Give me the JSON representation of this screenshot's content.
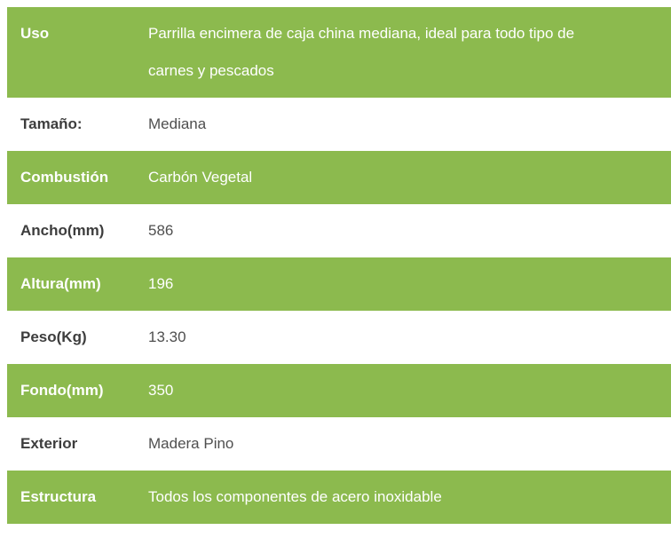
{
  "colors": {
    "row_highlight_green": "#8cba4e",
    "highlight_text": "#ffffff",
    "label_text": "#3d3d3d",
    "value_text": "#4f4f4f",
    "background": "#ffffff"
  },
  "spec_table": {
    "rows": [
      {
        "label": "Uso",
        "value": "Parrilla encimera de caja china mediana, ideal para todo tipo de carnes y pescados",
        "highlight": true
      },
      {
        "label": "Tamaño:",
        "value": "Mediana",
        "highlight": false
      },
      {
        "label": "Combustión",
        "value": "Carbón Vegetal",
        "highlight": true
      },
      {
        "label": "Ancho(mm)",
        "value": "586",
        "highlight": false
      },
      {
        "label": "Altura(mm)",
        "value": "196",
        "highlight": true
      },
      {
        "label": "Peso(Kg)",
        "value": "13.30",
        "highlight": false
      },
      {
        "label": "Fondo(mm)",
        "value": "350",
        "highlight": true
      },
      {
        "label": "Exterior",
        "value": "Madera Pino",
        "highlight": false
      },
      {
        "label": "Estructura",
        "value": "Todos los componentes de acero inoxidable",
        "highlight": true
      }
    ]
  }
}
